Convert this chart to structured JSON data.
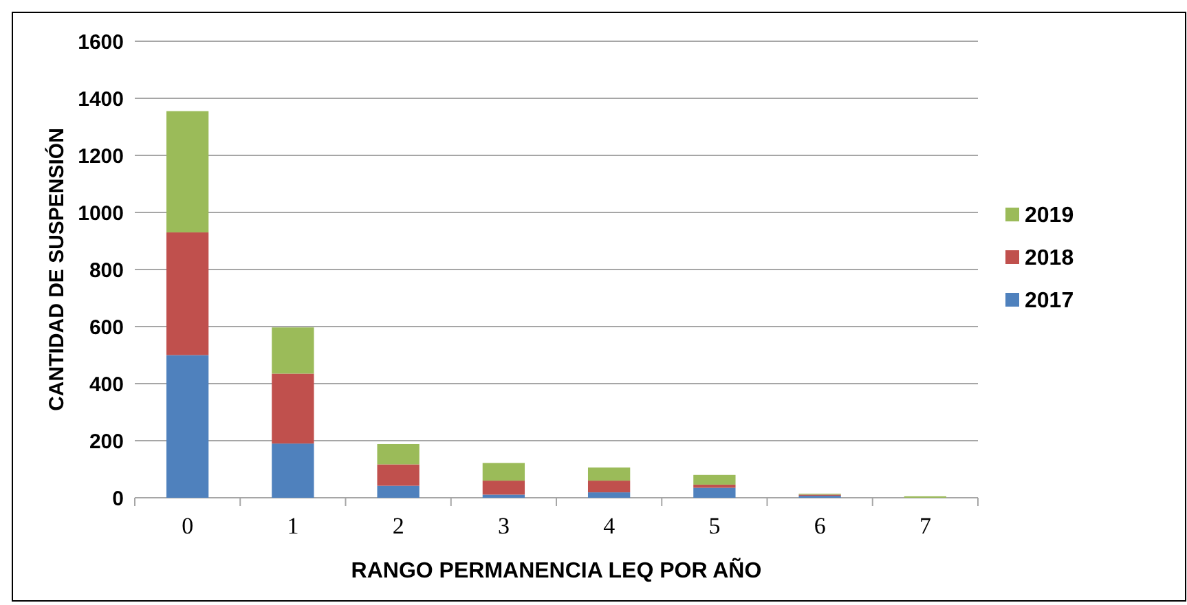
{
  "chart_data": {
    "type": "bar",
    "stacked": true,
    "xlabel": "RANGO PERMANENCIA  LEQ POR AÑO",
    "ylabel": "CANTIDAD DE SUSPENSIÓN",
    "categories": [
      "0",
      "1",
      "2",
      "3",
      "4",
      "5",
      "6",
      "7"
    ],
    "series": [
      {
        "name": "2017",
        "color": "#4f81bd",
        "values": [
          500,
          190,
          42,
          11,
          19,
          35,
          7,
          0
        ]
      },
      {
        "name": "2018",
        "color": "#c0504d",
        "values": [
          430,
          245,
          75,
          49,
          41,
          11,
          4,
          0
        ]
      },
      {
        "name": "2019",
        "color": "#9bbb59",
        "values": [
          425,
          162,
          71,
          62,
          46,
          34,
          3,
          5
        ]
      }
    ],
    "ylim": [
      0,
      1600
    ],
    "yticks": [
      0,
      200,
      400,
      600,
      800,
      1000,
      1200,
      1400,
      1600
    ],
    "grid": "y",
    "legend": "right"
  }
}
